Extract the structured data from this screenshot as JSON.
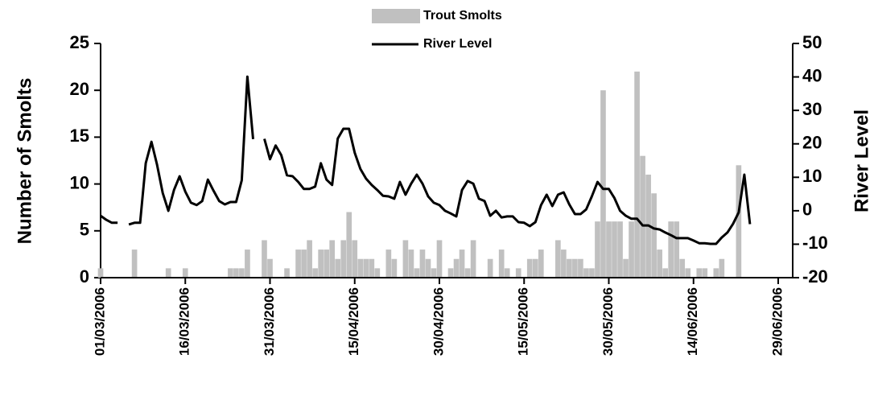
{
  "chart_data": {
    "type": "bar_line",
    "x_format": "dd/mm/yyyy",
    "x": [
      "01/03/2006",
      "02/03/2006",
      "03/03/2006",
      "04/03/2006",
      "05/03/2006",
      "06/03/2006",
      "07/03/2006",
      "08/03/2006",
      "09/03/2006",
      "10/03/2006",
      "11/03/2006",
      "12/03/2006",
      "13/03/2006",
      "14/03/2006",
      "15/03/2006",
      "16/03/2006",
      "17/03/2006",
      "18/03/2006",
      "19/03/2006",
      "20/03/2006",
      "21/03/2006",
      "22/03/2006",
      "23/03/2006",
      "24/03/2006",
      "25/03/2006",
      "26/03/2006",
      "27/03/2006",
      "28/03/2006",
      "29/03/2006",
      "30/03/2006",
      "31/03/2006",
      "01/04/2006",
      "02/04/2006",
      "03/04/2006",
      "04/04/2006",
      "05/04/2006",
      "06/04/2006",
      "07/04/2006",
      "08/04/2006",
      "09/04/2006",
      "10/04/2006",
      "11/04/2006",
      "12/04/2006",
      "13/04/2006",
      "14/04/2006",
      "15/04/2006",
      "16/04/2006",
      "17/04/2006",
      "18/04/2006",
      "19/04/2006",
      "20/04/2006",
      "21/04/2006",
      "22/04/2006",
      "23/04/2006",
      "24/04/2006",
      "25/04/2006",
      "26/04/2006",
      "27/04/2006",
      "28/04/2006",
      "29/04/2006",
      "30/04/2006",
      "01/05/2006",
      "02/05/2006",
      "03/05/2006",
      "04/05/2006",
      "05/05/2006",
      "06/05/2006",
      "07/05/2006",
      "08/05/2006",
      "09/05/2006",
      "10/05/2006",
      "11/05/2006",
      "12/05/2006",
      "13/05/2006",
      "14/05/2006",
      "15/05/2006",
      "16/05/2006",
      "17/05/2006",
      "18/05/2006",
      "19/05/2006",
      "20/05/2006",
      "21/05/2006",
      "22/05/2006",
      "23/05/2006",
      "24/05/2006",
      "25/05/2006",
      "26/05/2006",
      "27/05/2006",
      "28/05/2006",
      "29/05/2006",
      "30/05/2006",
      "31/05/2006",
      "01/06/2006",
      "02/06/2006",
      "03/06/2006",
      "04/06/2006",
      "05/06/2006",
      "06/06/2006",
      "07/06/2006",
      "08/06/2006",
      "09/06/2006",
      "10/06/2006",
      "11/06/2006",
      "12/06/2006",
      "13/06/2006",
      "14/06/2006",
      "15/06/2006",
      "16/06/2006",
      "17/06/2006",
      "18/06/2006",
      "19/06/2006",
      "20/06/2006",
      "21/06/2006",
      "22/06/2006",
      "23/06/2006",
      "24/06/2006"
    ],
    "series": [
      {
        "name": "Trout Smolts",
        "type": "bar",
        "color": "#c0c0c0",
        "axis": "y",
        "values": [
          1,
          0,
          0,
          0,
          0,
          0,
          3,
          0,
          0,
          0,
          0,
          0,
          1,
          0,
          0,
          1,
          0,
          0,
          0,
          0,
          0,
          0,
          0,
          1,
          1,
          1,
          3,
          0,
          0,
          4,
          2,
          0,
          0,
          1,
          0,
          3,
          3,
          4,
          1,
          3,
          3,
          4,
          2,
          4,
          7,
          4,
          2,
          2,
          2,
          1,
          0,
          3,
          2,
          0,
          4,
          3,
          1,
          3,
          2,
          1,
          4,
          0,
          1,
          2,
          3,
          1,
          4,
          0,
          0,
          2,
          0,
          3,
          1,
          0,
          1,
          0,
          2,
          2,
          3,
          0,
          0,
          4,
          3,
          2,
          2,
          2,
          1,
          1,
          6,
          20,
          6,
          6,
          6,
          2,
          6,
          22,
          13,
          11,
          9,
          3,
          1,
          6,
          6,
          2,
          1,
          0,
          1,
          1,
          0,
          1,
          2,
          0,
          0,
          12,
          0,
          0
        ]
      },
      {
        "name": "River Level",
        "type": "line",
        "color": "#000000",
        "axis": "y2",
        "values": [
          -1.5,
          -2.7,
          -3.6,
          -3.6,
          null,
          -4.1,
          -3.6,
          -3.6,
          14.2,
          20.6,
          13.7,
          5.3,
          0,
          6.2,
          10.3,
          5.7,
          2.4,
          1.7,
          2.9,
          9.3,
          6,
          2.9,
          1.9,
          2.6,
          2.6,
          9.1,
          40.1,
          21.4,
          null,
          21.5,
          15.4,
          19.5,
          16.6,
          10.6,
          10.3,
          8.6,
          6.5,
          6.5,
          7.2,
          14.2,
          9.3,
          7.7,
          21.6,
          24.5,
          24.5,
          17.3,
          12.5,
          9.6,
          7.7,
          6.2,
          4.5,
          4.3,
          3.6,
          8.6,
          4.8,
          8.1,
          10.8,
          8.1,
          4.3,
          2.4,
          1.7,
          0,
          -0.8,
          -1.7,
          6.2,
          8.9,
          8.1,
          3.6,
          2.9,
          -1.5,
          0,
          -2,
          -1.7,
          -1.7,
          -3.4,
          -3.6,
          -4.6,
          -3.4,
          1.7,
          4.8,
          1.4,
          4.8,
          5.5,
          1.9,
          -1,
          -1,
          0.4,
          4.3,
          8.6,
          6.5,
          6.5,
          3.8,
          0,
          -1.5,
          -2.4,
          -2.4,
          -4.4,
          -4.4,
          -5.3,
          -5.6,
          -6.5,
          -7.3,
          -8.2,
          -8.2,
          -8.2,
          -8.9,
          -9.7,
          -9.7,
          -9.9,
          -9.9,
          -8,
          -6.5,
          -3.9,
          -0.5,
          10.8,
          -4
        ]
      }
    ],
    "y_label": "Number of Smolts",
    "y2_label": "River Level",
    "xlim": [
      "01/03/2006",
      "29/06/2006"
    ],
    "xticks": [
      "01/03/2006",
      "16/03/2006",
      "31/03/2006",
      "15/04/2006",
      "30/04/2006",
      "15/05/2006",
      "30/05/2006",
      "14/06/2006",
      "29/06/2006"
    ],
    "ylim": [
      0,
      25
    ],
    "yticks": [
      0,
      5,
      10,
      15,
      20,
      25
    ],
    "y2lim": [
      -20,
      50
    ],
    "y2ticks": [
      -20,
      -10,
      0,
      10,
      20,
      30,
      40,
      50
    ],
    "legend": "top"
  }
}
